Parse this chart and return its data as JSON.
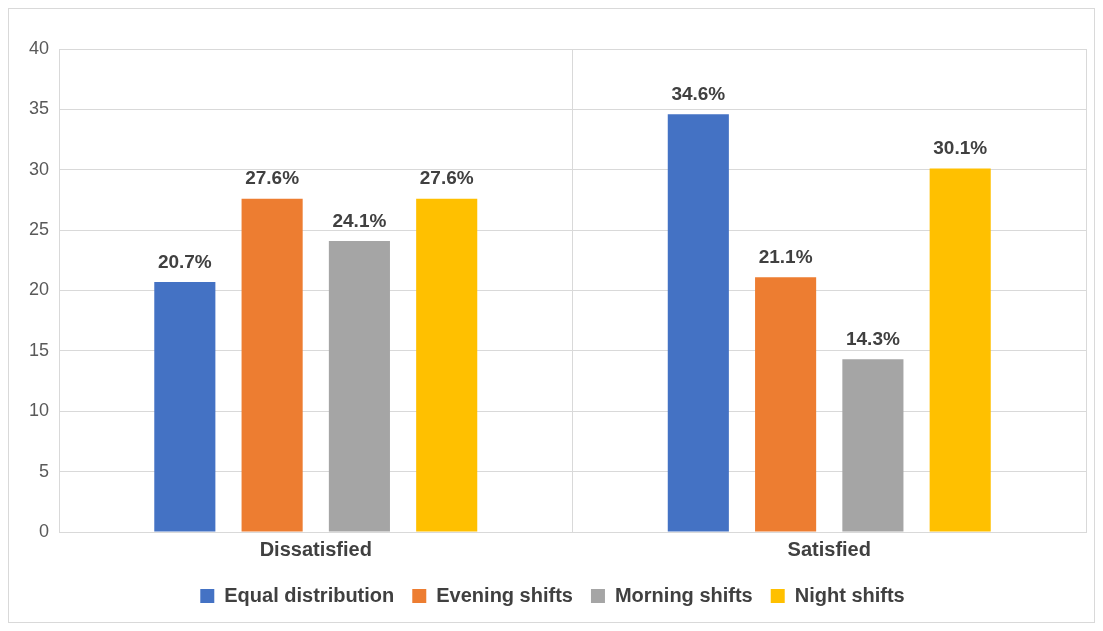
{
  "chart_data": {
    "type": "bar",
    "categories": [
      "Dissatisfied",
      "Satisfied"
    ],
    "series": [
      {
        "name": "Equal distribution",
        "color": "#4472c4",
        "values": [
          20.7,
          34.6
        ],
        "value_labels": [
          "20.7%",
          "34.6%"
        ]
      },
      {
        "name": "Evening shifts",
        "color": "#ed7d31",
        "values": [
          27.6,
          21.1
        ],
        "value_labels": [
          "27.6%",
          "21.1%"
        ]
      },
      {
        "name": "Morning shifts",
        "color": "#a5a5a5",
        "values": [
          24.1,
          14.3
        ],
        "value_labels": [
          "24.1%",
          "14.3%"
        ]
      },
      {
        "name": "Night shifts",
        "color": "#ffc000",
        "values": [
          27.6,
          30.1
        ],
        "value_labels": [
          "27.6%",
          "30.1%"
        ]
      }
    ],
    "ylim": [
      0,
      40
    ],
    "yticks": [
      0,
      5,
      10,
      15,
      20,
      25,
      30,
      35,
      40
    ],
    "grid": true,
    "legend": "bottom"
  }
}
